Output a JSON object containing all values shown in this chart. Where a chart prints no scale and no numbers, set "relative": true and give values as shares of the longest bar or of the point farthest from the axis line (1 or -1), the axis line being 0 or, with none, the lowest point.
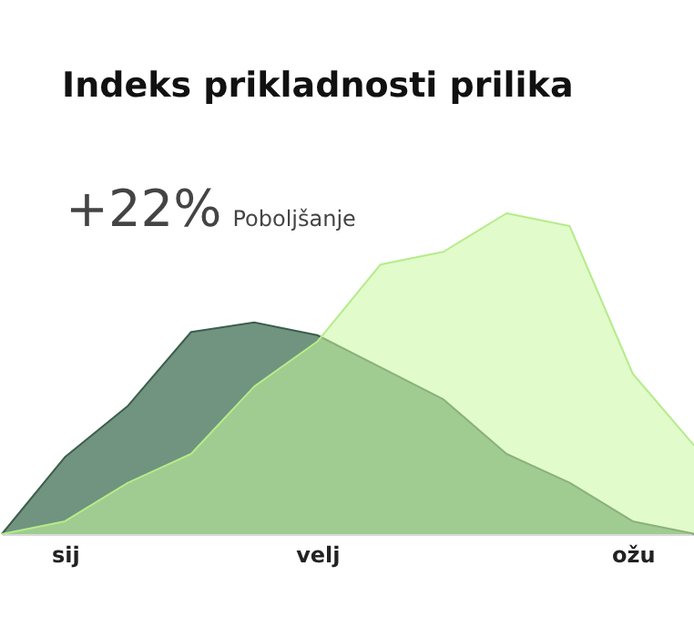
{
  "chart_data": {
    "type": "area",
    "title": "Indeks prikladnosti prilika",
    "annotations": [
      "+22%",
      "Poboljšanje"
    ],
    "relative": true,
    "grid": false,
    "categories": [
      null,
      "sij",
      null,
      null,
      null,
      "velj",
      null,
      null,
      null,
      null,
      "ožu",
      null
    ],
    "series": [
      {
        "color": "#70947f",
        "values": [
          0,
          0.24,
          0.4,
          0.63,
          0.66,
          0.62,
          0.52,
          0.42,
          0.25,
          0.16,
          0.04,
          0
        ]
      },
      {
        "color": "#c8f7a0",
        "values": [
          0,
          0.04,
          0.16,
          0.25,
          0.46,
          0.6,
          0.84,
          0.88,
          1,
          0.96,
          0.5,
          0.27
        ]
      }
    ]
  }
}
